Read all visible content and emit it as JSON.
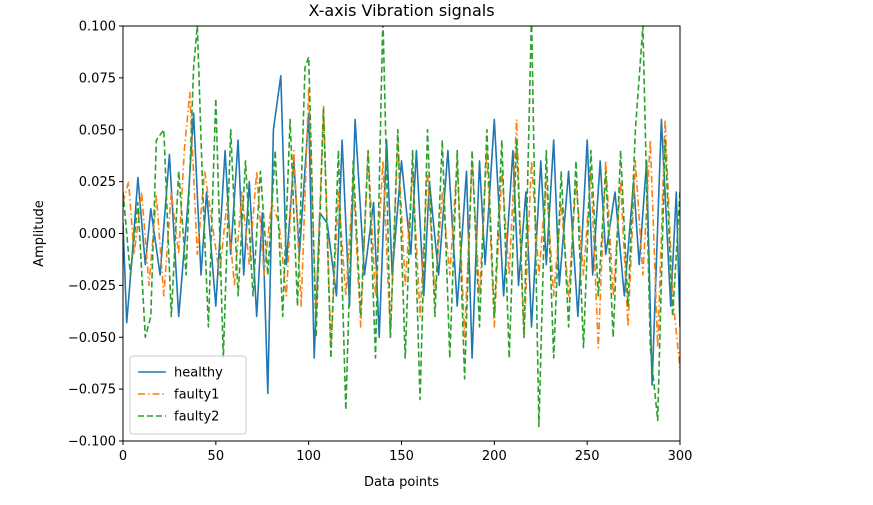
{
  "chart_data": {
    "type": "line",
    "title": "X-axis Vibration signals",
    "xlabel": "Data points",
    "ylabel": "Amplitude",
    "xlim": [
      0,
      300
    ],
    "ylim": [
      -0.1,
      0.1
    ],
    "xticks": [
      0,
      50,
      100,
      150,
      200,
      250,
      300
    ],
    "xtick_labels": [
      "0",
      "50",
      "100",
      "150",
      "200",
      "250",
      "300"
    ],
    "yticks": [
      -0.1,
      -0.075,
      -0.05,
      -0.025,
      0.0,
      0.025,
      0.05,
      0.075,
      0.1
    ],
    "ytick_labels": [
      "−0.100",
      "−0.075",
      "−0.050",
      "−0.025",
      "0.000",
      "0.025",
      "0.050",
      "0.075",
      "0.100"
    ],
    "grid": false,
    "legend_position": "lower-left",
    "series": [
      {
        "name": "healthy",
        "color": "#1f77b4",
        "dash": "solid",
        "x": [
          0,
          2,
          5,
          8,
          12,
          15,
          20,
          25,
          30,
          35,
          38,
          42,
          45,
          50,
          55,
          58,
          62,
          65,
          68,
          72,
          75,
          78,
          81,
          85,
          88,
          92,
          95,
          100,
          103,
          106,
          110,
          115,
          118,
          122,
          125,
          130,
          135,
          138,
          142,
          145,
          150,
          155,
          158,
          162,
          165,
          170,
          175,
          180,
          185,
          188,
          192,
          195,
          200,
          205,
          210,
          213,
          217,
          220,
          225,
          228,
          232,
          235,
          240,
          245,
          250,
          253,
          257,
          260,
          265,
          270,
          275,
          278,
          282,
          285,
          290,
          295,
          298,
          300
        ],
        "y": [
          0.005,
          -0.043,
          -0.01,
          0.027,
          -0.015,
          0.012,
          -0.02,
          0.038,
          -0.04,
          0.015,
          0.058,
          -0.02,
          0.02,
          -0.035,
          0.04,
          -0.01,
          0.045,
          -0.02,
          0.025,
          -0.04,
          0.01,
          -0.077,
          0.05,
          0.076,
          -0.015,
          0.035,
          -0.01,
          0.058,
          -0.06,
          0.01,
          0.005,
          -0.03,
          0.045,
          -0.035,
          0.055,
          -0.02,
          0.015,
          -0.05,
          0.045,
          -0.02,
          0.035,
          -0.01,
          0.04,
          -0.03,
          0.025,
          -0.02,
          0.04,
          -0.035,
          0.03,
          -0.06,
          0.035,
          -0.015,
          0.055,
          -0.03,
          0.04,
          -0.025,
          0.02,
          -0.045,
          0.035,
          -0.015,
          0.045,
          -0.025,
          0.03,
          -0.04,
          0.045,
          -0.02,
          0.035,
          -0.01,
          0.02,
          -0.03,
          0.025,
          -0.015,
          0.035,
          -0.073,
          0.055,
          -0.035,
          0.02,
          -0.045
        ]
      },
      {
        "name": "faulty1",
        "color": "#ff7f0e",
        "dash": "dashdot",
        "x": [
          0,
          3,
          6,
          10,
          14,
          18,
          22,
          26,
          30,
          33,
          36,
          40,
          44,
          48,
          52,
          56,
          60,
          64,
          68,
          72,
          76,
          80,
          84,
          88,
          92,
          96,
          100,
          104,
          108,
          112,
          116,
          120,
          124,
          128,
          132,
          136,
          140,
          144,
          148,
          152,
          156,
          160,
          164,
          168,
          172,
          176,
          180,
          184,
          188,
          192,
          196,
          200,
          204,
          208,
          212,
          216,
          220,
          224,
          228,
          232,
          236,
          240,
          244,
          248,
          252,
          256,
          260,
          264,
          268,
          272,
          276,
          280,
          284,
          288,
          292,
          296,
          300
        ],
        "y": [
          0.015,
          0.025,
          -0.01,
          0.02,
          -0.025,
          0.018,
          -0.03,
          0.02,
          -0.01,
          0.04,
          0.068,
          -0.01,
          0.03,
          0.005,
          -0.02,
          0.015,
          -0.025,
          0.02,
          -0.015,
          0.03,
          -0.02,
          0.015,
          0.005,
          -0.03,
          0.04,
          -0.035,
          0.07,
          -0.04,
          0.062,
          -0.055,
          0.02,
          -0.03,
          0.025,
          -0.045,
          0.04,
          -0.03,
          0.035,
          -0.05,
          0.045,
          -0.025,
          0.03,
          -0.04,
          0.03,
          -0.03,
          0.02,
          -0.02,
          0.035,
          -0.05,
          0.035,
          -0.03,
          0.04,
          -0.045,
          0.03,
          -0.02,
          0.055,
          -0.05,
          0.035,
          -0.02,
          0.025,
          -0.03,
          0.015,
          -0.03,
          0.025,
          -0.02,
          0.03,
          -0.055,
          0.035,
          -0.03,
          0.025,
          -0.045,
          0.035,
          -0.02,
          0.045,
          -0.055,
          0.055,
          -0.03,
          -0.065
        ]
      },
      {
        "name": "faulty2",
        "color": "#2ca02c",
        "dash": "dashed",
        "x": [
          0,
          4,
          8,
          12,
          15,
          18,
          22,
          26,
          30,
          34,
          38,
          40,
          43,
          46,
          50,
          54,
          58,
          62,
          66,
          70,
          74,
          78,
          82,
          86,
          90,
          94,
          98,
          100,
          104,
          108,
          112,
          116,
          120,
          124,
          128,
          132,
          136,
          140,
          144,
          148,
          152,
          156,
          160,
          164,
          168,
          172,
          176,
          180,
          184,
          188,
          192,
          196,
          200,
          204,
          208,
          212,
          216,
          220,
          224,
          228,
          232,
          236,
          240,
          244,
          248,
          252,
          256,
          260,
          264,
          268,
          272,
          276,
          280,
          284,
          288,
          292,
          296,
          300
        ],
        "y": [
          0.02,
          -0.02,
          0.015,
          -0.05,
          -0.04,
          0.045,
          0.05,
          -0.04,
          0.03,
          -0.02,
          0.08,
          0.1,
          0.02,
          -0.045,
          0.065,
          -0.06,
          0.05,
          -0.03,
          0.035,
          -0.03,
          0.03,
          -0.02,
          0.04,
          -0.04,
          0.055,
          -0.035,
          0.08,
          0.085,
          -0.05,
          0.06,
          -0.06,
          0.04,
          -0.085,
          0.035,
          -0.04,
          0.04,
          -0.06,
          0.105,
          -0.05,
          0.05,
          -0.06,
          0.04,
          -0.08,
          0.05,
          -0.04,
          0.045,
          -0.06,
          0.04,
          -0.07,
          0.04,
          -0.045,
          0.05,
          -0.04,
          0.045,
          -0.06,
          0.045,
          -0.05,
          0.105,
          -0.093,
          0.04,
          -0.06,
          0.03,
          -0.045,
          0.035,
          -0.055,
          0.04,
          -0.03,
          0.03,
          -0.05,
          0.04,
          -0.035,
          0.05,
          0.1,
          -0.055,
          -0.09,
          0.045,
          -0.04,
          0.02
        ]
      }
    ]
  }
}
